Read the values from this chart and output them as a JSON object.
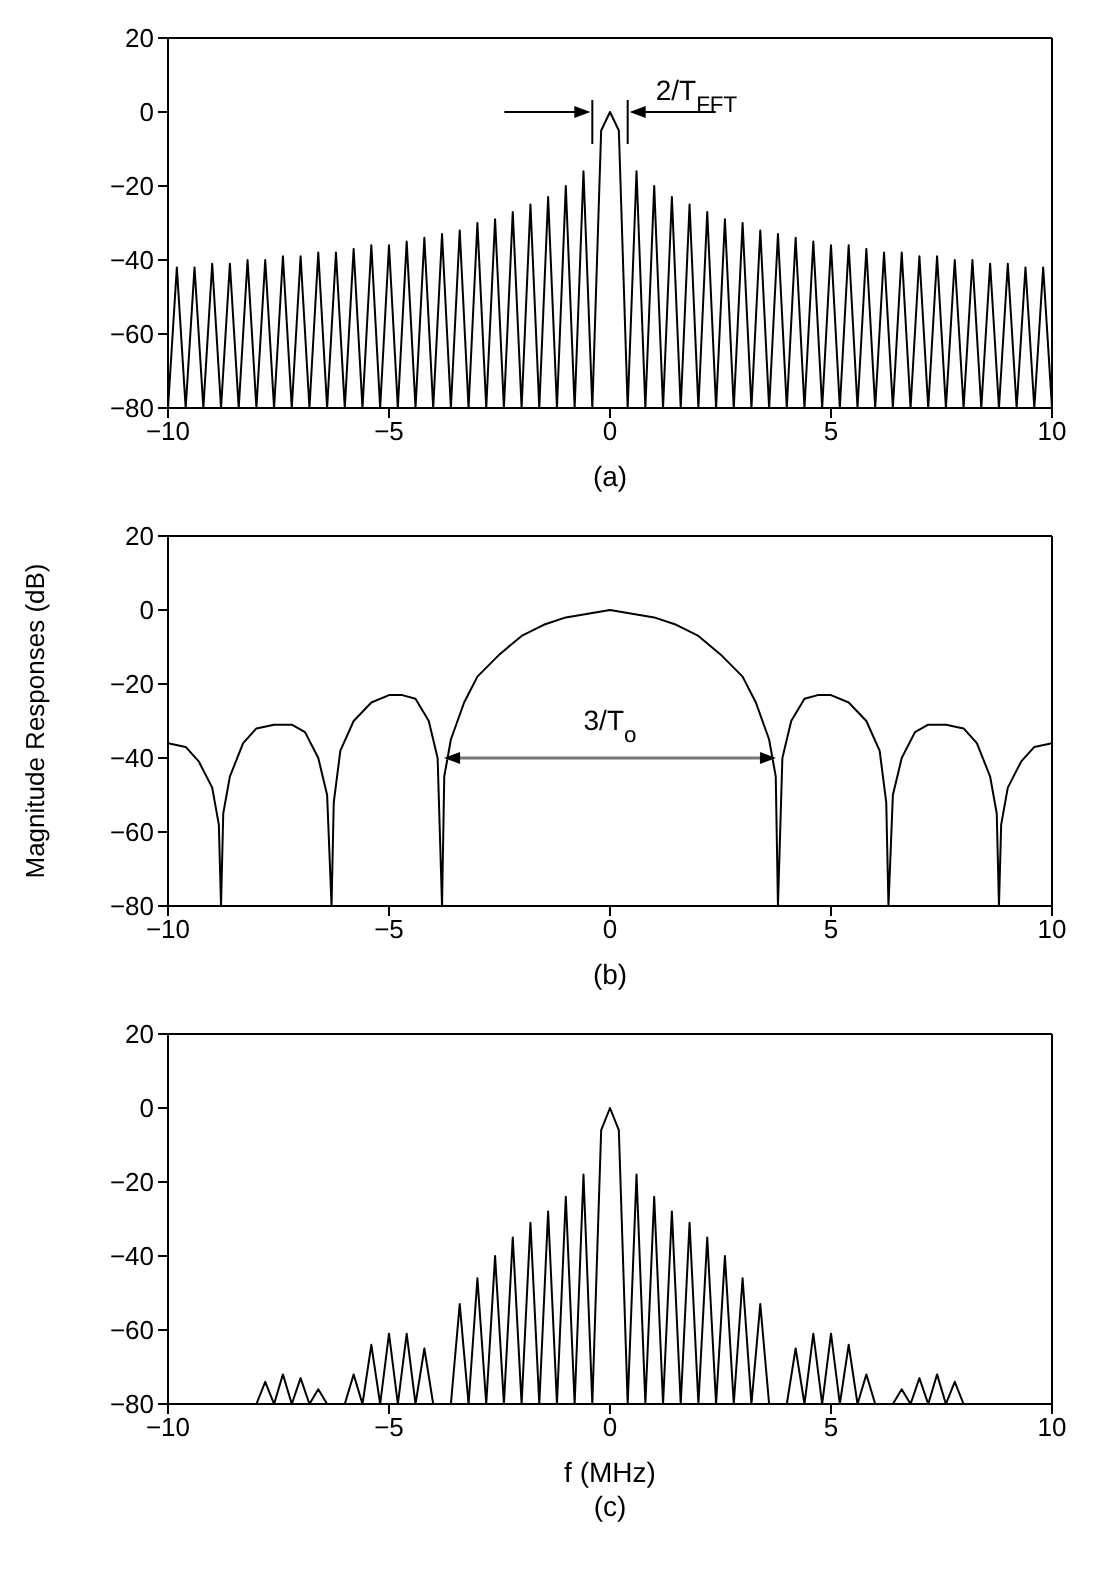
{
  "chart_data": [
    {
      "type": "line",
      "title": "(a)",
      "color": "#000000",
      "xlim": [
        -10,
        10
      ],
      "xticks": [
        -10,
        -5,
        0,
        5,
        10
      ],
      "ylim": [
        -80,
        20
      ],
      "yticks": [
        -80,
        -60,
        -40,
        -20,
        0,
        20
      ],
      "x": [
        -10,
        -9.8,
        -9.6,
        -9.4,
        -9.2,
        -9,
        -8.8,
        -8.6,
        -8.4,
        -8.2,
        -8,
        -7.8,
        -7.6,
        -7.4,
        -7.2,
        -7,
        -6.8,
        -6.6,
        -6.4,
        -6.2,
        -6,
        -5.8,
        -5.6,
        -5.4,
        -5.2,
        -5,
        -4.8,
        -4.6,
        -4.4,
        -4.2,
        -4,
        -3.8,
        -3.6,
        -3.4,
        -3.2,
        -3,
        -2.8,
        -2.6,
        -2.4,
        -2.2,
        -2,
        -1.8,
        -1.6,
        -1.4,
        -1.2,
        -1,
        -0.8,
        -0.6,
        -0.4,
        -0.2,
        0,
        0.2,
        0.4,
        0.6,
        0.8,
        1,
        1.2,
        1.4,
        1.6,
        1.8,
        2,
        2.2,
        2.4,
        2.6,
        2.8,
        3,
        3.2,
        3.4,
        3.6,
        3.8,
        4,
        4.2,
        4.4,
        4.6,
        4.8,
        5,
        5.2,
        5.4,
        5.6,
        5.8,
        6,
        6.2,
        6.4,
        6.6,
        6.8,
        7,
        7.2,
        7.4,
        7.6,
        7.8,
        8,
        8.2,
        8.4,
        8.6,
        8.8,
        9,
        9.2,
        9.4,
        9.6,
        9.8,
        10
      ],
      "values": [
        -80,
        -42,
        -80,
        -42,
        -80,
        -41,
        -80,
        -41,
        -80,
        -40,
        -80,
        -40,
        -80,
        -39,
        -80,
        -39,
        -80,
        -38,
        -80,
        -38,
        -80,
        -37,
        -80,
        -36,
        -80,
        -36,
        -80,
        -35,
        -80,
        -34,
        -80,
        -33,
        -80,
        -32,
        -80,
        -30,
        -80,
        -29,
        -80,
        -27,
        -80,
        -25,
        -80,
        -23,
        -80,
        -20,
        -80,
        -16,
        -80,
        -5,
        0,
        -5,
        -80,
        -16,
        -80,
        -20,
        -80,
        -23,
        -80,
        -25,
        -80,
        -27,
        -80,
        -29,
        -80,
        -30,
        -80,
        -32,
        -80,
        -33,
        -80,
        -34,
        -80,
        -35,
        -80,
        -36,
        -80,
        -36,
        -80,
        -37,
        -80,
        -38,
        -80,
        -38,
        -80,
        -39,
        -80,
        -39,
        -80,
        -40,
        -80,
        -40,
        -80,
        -41,
        -80,
        -41,
        -80,
        -42,
        -80,
        -42,
        -80
      ],
      "annotations": [
        {
          "text": "2/T$_{FFT}$",
          "x": 0,
          "y": 0
        }
      ]
    },
    {
      "type": "line",
      "title": "(b)",
      "ylabel": "Magnitude Responses (dB)",
      "color": "#000000",
      "xlim": [
        -10,
        10
      ],
      "xticks": [
        -10,
        -5,
        0,
        5,
        10
      ],
      "ylim": [
        -80,
        20
      ],
      "yticks": [
        -80,
        -60,
        -40,
        -20,
        0,
        20
      ],
      "x": [
        -10,
        -9.6,
        -9.3,
        -9,
        -8.85,
        -8.8,
        -8.75,
        -8.6,
        -8.3,
        -8,
        -7.6,
        -7.2,
        -6.9,
        -6.6,
        -6.4,
        -6.3,
        -6.25,
        -6.1,
        -5.8,
        -5.4,
        -5,
        -4.7,
        -4.4,
        -4.1,
        -3.9,
        -3.8,
        -3.75,
        -3.6,
        -3.3,
        -3,
        -2.5,
        -2,
        -1.5,
        -1,
        -0.5,
        0,
        0.5,
        1,
        1.5,
        2,
        2.5,
        3,
        3.3,
        3.6,
        3.75,
        3.8,
        3.9,
        4.1,
        4.4,
        4.7,
        5,
        5.4,
        5.8,
        6.1,
        6.25,
        6.3,
        6.4,
        6.6,
        6.9,
        7.2,
        7.6,
        8,
        8.3,
        8.6,
        8.75,
        8.8,
        8.85,
        9,
        9.3,
        9.6,
        10
      ],
      "values": [
        -36,
        -37,
        -41,
        -48,
        -58,
        -80,
        -55,
        -45,
        -36,
        -32,
        -31,
        -31,
        -33,
        -40,
        -50,
        -80,
        -52,
        -38,
        -30,
        -25,
        -23,
        -23,
        -24,
        -30,
        -40,
        -80,
        -45,
        -35,
        -25,
        -18,
        -12,
        -7,
        -4,
        -2,
        -1,
        0,
        -1,
        -2,
        -4,
        -7,
        -12,
        -18,
        -25,
        -35,
        -45,
        -80,
        -40,
        -30,
        -24,
        -23,
        -23,
        -25,
        -30,
        -38,
        -52,
        -80,
        -50,
        -40,
        -33,
        -31,
        -31,
        -32,
        -36,
        -45,
        -55,
        -80,
        -58,
        -48,
        -41,
        -37,
        -36
      ],
      "annotations": [
        "3/T$_{o}$"
      ]
    },
    {
      "type": "line",
      "title": "(c)",
      "xlabel": "f (MHz)",
      "color": "#000000",
      "xlim": [
        -10,
        10
      ],
      "xticks": [
        -10,
        -5,
        0,
        5,
        10
      ],
      "ylim": [
        -80,
        20
      ],
      "yticks": [
        -80,
        -60,
        -40,
        -20,
        0,
        20
      ],
      "x": [
        -10,
        -9.8,
        -9.6,
        -9.4,
        -9.2,
        -9,
        -8.8,
        -8.6,
        -8.4,
        -8.2,
        -8,
        -7.8,
        -7.6,
        -7.4,
        -7.2,
        -7,
        -6.8,
        -6.6,
        -6.4,
        -6.2,
        -6,
        -5.8,
        -5.6,
        -5.4,
        -5.2,
        -5,
        -4.8,
        -4.6,
        -4.4,
        -4.2,
        -4,
        -3.8,
        -3.6,
        -3.4,
        -3.2,
        -3,
        -2.8,
        -2.6,
        -2.4,
        -2.2,
        -2,
        -1.8,
        -1.6,
        -1.4,
        -1.2,
        -1,
        -0.8,
        -0.6,
        -0.4,
        -0.2,
        0,
        0.2,
        0.4,
        0.6,
        0.8,
        1,
        1.2,
        1.4,
        1.6,
        1.8,
        2,
        2.2,
        2.4,
        2.6,
        2.8,
        3,
        3.2,
        3.4,
        3.6,
        3.8,
        4,
        4.2,
        4.4,
        4.6,
        4.8,
        5,
        5.2,
        5.4,
        5.6,
        5.8,
        6,
        6.2,
        6.4,
        6.6,
        6.8,
        7,
        7.2,
        7.4,
        7.6,
        7.8,
        8,
        8.2,
        8.4,
        8.6,
        8.8,
        9,
        9.2,
        9.4,
        9.6,
        9.8,
        10
      ],
      "values": [
        -80,
        -80,
        -80,
        -80,
        -80,
        -80,
        -80,
        -80,
        -80,
        -80,
        -80,
        -74,
        -80,
        -72,
        -80,
        -73,
        -80,
        -76,
        -80,
        -80,
        -80,
        -72,
        -80,
        -64,
        -80,
        -61,
        -80,
        -61,
        -80,
        -65,
        -80,
        -80,
        -80,
        -53,
        -80,
        -46,
        -80,
        -40,
        -80,
        -35,
        -80,
        -31,
        -80,
        -28,
        -80,
        -24,
        -80,
        -18,
        -80,
        -6,
        0,
        -6,
        -80,
        -18,
        -80,
        -24,
        -80,
        -28,
        -80,
        -31,
        -80,
        -35,
        -80,
        -40,
        -80,
        -46,
        -80,
        -53,
        -80,
        -80,
        -80,
        -65,
        -80,
        -61,
        -80,
        -61,
        -80,
        -64,
        -80,
        -72,
        -80,
        -80,
        -80,
        -76,
        -80,
        -73,
        -80,
        -72,
        -80,
        -74,
        -80,
        -80,
        -80,
        -80,
        -80,
        -80,
        -80,
        -80,
        -80,
        -80,
        -80
      ]
    }
  ]
}
